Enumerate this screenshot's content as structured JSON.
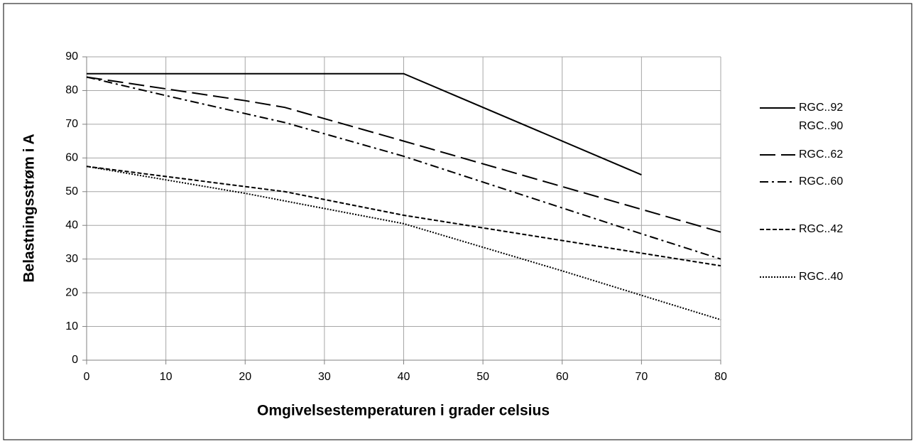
{
  "chart_data": {
    "type": "line",
    "xlabel": "Omgivelsestemperaturen i grader celsius",
    "ylabel": "Belastningsstrøm i A",
    "xlim": [
      0,
      80
    ],
    "xticks": [
      0,
      10,
      20,
      30,
      40,
      50,
      60,
      70,
      80
    ],
    "ylim": [
      0,
      90
    ],
    "yticks": [
      0,
      10,
      20,
      30,
      40,
      50,
      60,
      70,
      80,
      90
    ],
    "grid": true,
    "legend": "right",
    "series": [
      {
        "name": "RGC..92\nRGC..90",
        "color": "#000000",
        "style": "solid",
        "x": [
          0,
          40,
          70
        ],
        "values": [
          85,
          85,
          55
        ]
      },
      {
        "name": "RGC..62",
        "color": "#000000",
        "style": "longdash",
        "x": [
          0,
          10,
          20,
          25,
          40,
          60,
          80
        ],
        "values": [
          84,
          80.5,
          77,
          75,
          65,
          51.5,
          38
        ]
      },
      {
        "name": "RGC..60",
        "color": "#000000",
        "style": "dashdot",
        "x": [
          0,
          10,
          25,
          40,
          70,
          80
        ],
        "values": [
          84,
          78.5,
          70.5,
          60.5,
          37.5,
          30
        ]
      },
      {
        "name": "RGC..42",
        "color": "#000000",
        "style": "dashed",
        "x": [
          0,
          25,
          40,
          60,
          80
        ],
        "values": [
          57.5,
          50,
          43,
          35.5,
          28
        ]
      },
      {
        "name": "RGC..40",
        "color": "#000000",
        "style": "dotted",
        "x": [
          0,
          20,
          40,
          60,
          80
        ],
        "values": [
          57.5,
          49.5,
          40.5,
          26.5,
          12
        ]
      }
    ]
  }
}
